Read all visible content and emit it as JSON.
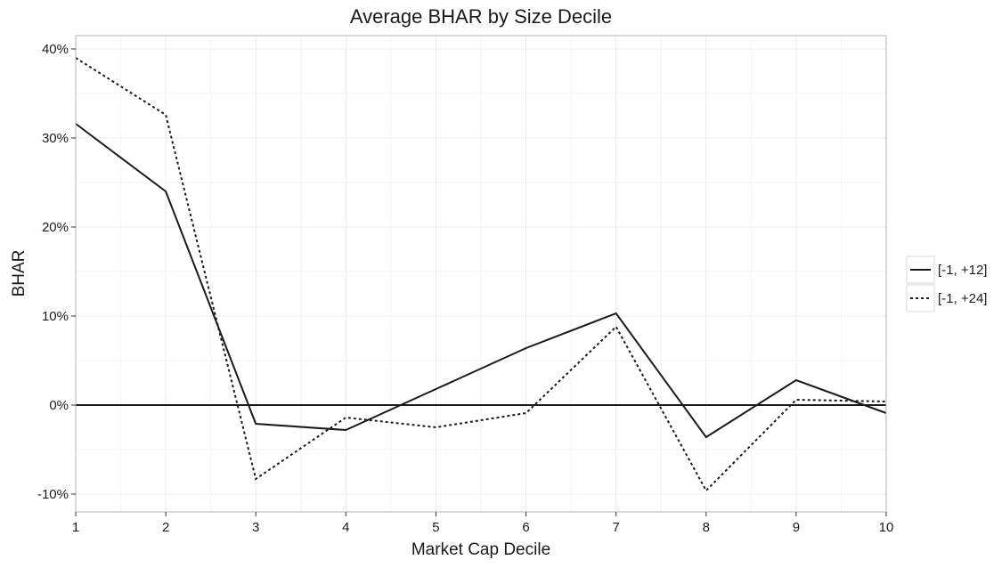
{
  "chart_data": {
    "type": "line",
    "title": "Average BHAR by Size Decile",
    "xlabel": "Market Cap Decile",
    "ylabel": "BHAR",
    "x": [
      1,
      2,
      3,
      4,
      5,
      6,
      7,
      8,
      9,
      10
    ],
    "xlim": [
      1,
      10
    ],
    "ylim": [
      -12,
      41.5
    ],
    "x_ticks": [
      "1",
      "2",
      "3",
      "4",
      "5",
      "6",
      "7",
      "8",
      "9",
      "10"
    ],
    "y_ticks": [
      {
        "value": -10,
        "label": "-10%"
      },
      {
        "value": 0,
        "label": "0%"
      },
      {
        "value": 10,
        "label": "10%"
      },
      {
        "value": 20,
        "label": "20%"
      },
      {
        "value": 30,
        "label": "30%"
      },
      {
        "value": 40,
        "label": "40%"
      }
    ],
    "grid": true,
    "reference_line": 0,
    "legend_position": "right",
    "series": [
      {
        "name": "[-1, +12]",
        "style": "solid",
        "values": [
          31.6,
          24.0,
          -2.1,
          -2.8,
          1.8,
          6.4,
          10.3,
          -3.6,
          2.8,
          -0.9
        ]
      },
      {
        "name": "[-1, +24]",
        "style": "dotted",
        "values": [
          39.0,
          32.6,
          -8.3,
          -1.4,
          -2.5,
          -0.9,
          8.8,
          -9.6,
          0.6,
          0.4
        ]
      }
    ],
    "colors": {
      "line": "#1a1a1a",
      "grid": "#ebebeb",
      "panel_border": "#b3b3b3"
    }
  }
}
